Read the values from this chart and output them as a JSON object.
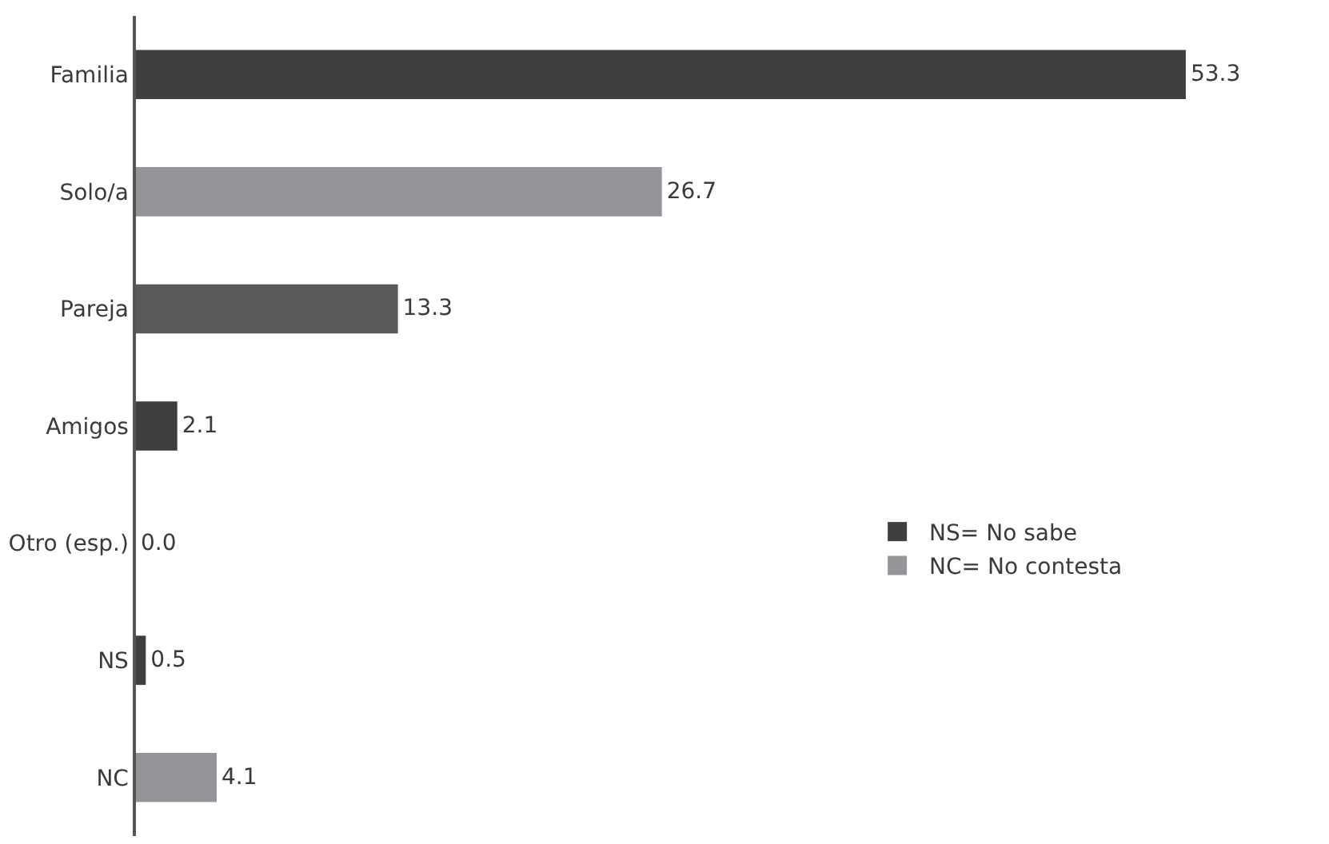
{
  "chart_data": {
    "type": "bar",
    "orientation": "horizontal",
    "categories": [
      "Familia",
      "Solo/a",
      "Pareja",
      "Amigos",
      "Otro (esp.)",
      "NS",
      "NC"
    ],
    "series": [
      {
        "name": "NS= No sabe",
        "color": "#3f3f40",
        "values": [
          53.3,
          null,
          null,
          2.1,
          0.0,
          0.5,
          null
        ],
        "value_labels": [
          "53.3",
          null,
          null,
          "2.1",
          "0.0",
          "0.5",
          null
        ]
      },
      {
        "name": "NC= No contesta",
        "color": "#949598",
        "values": [
          null,
          26.7,
          null,
          null,
          null,
          null,
          4.1
        ],
        "value_labels": [
          null,
          "26.7",
          null,
          null,
          null,
          null,
          "4.1"
        ]
      },
      {
        "color": "#58595b",
        "values": [
          null,
          null,
          13.3,
          null,
          null,
          null,
          null
        ],
        "value_labels": [
          null,
          null,
          "13.3",
          null,
          null,
          null,
          null
        ]
      }
    ],
    "tick_labels": "y",
    "legend": "right"
  }
}
